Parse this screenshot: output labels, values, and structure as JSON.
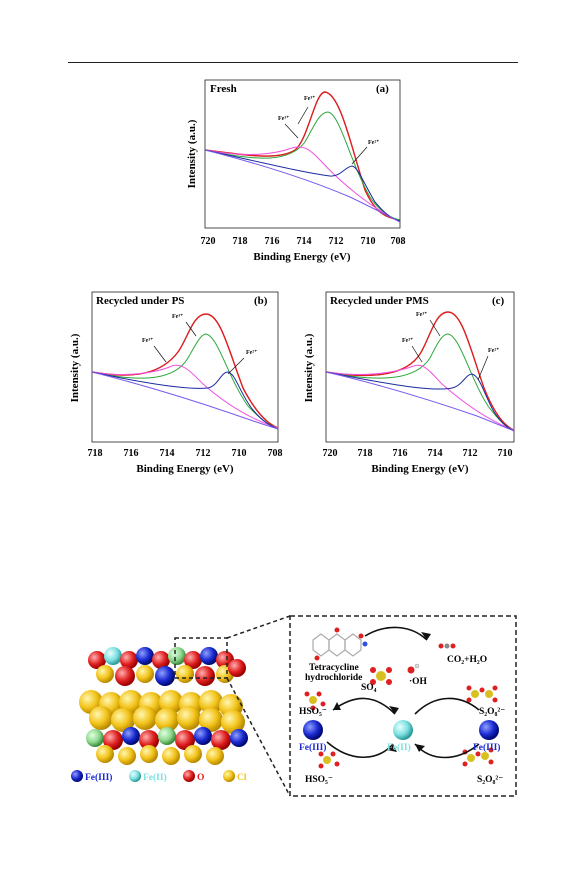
{
  "charts": [
    {
      "id": "a",
      "title": "Fresh",
      "panel_label": "(a)",
      "xlabel": "Binding Energy (eV)",
      "ylabel": "Intensity (a.u.)",
      "xticks": [
        "720",
        "718",
        "716",
        "714",
        "712",
        "710",
        "708"
      ],
      "annotations": [
        "Fe³⁺",
        "Fe³⁺",
        "Fe²⁺"
      ]
    },
    {
      "id": "b",
      "title": "Recycled under PS",
      "panel_label": "(b)",
      "xlabel": "Binding Energy (eV)",
      "ylabel": "Intensity (a.u.)",
      "xticks": [
        "718",
        "716",
        "714",
        "712",
        "710",
        "708"
      ],
      "annotations": [
        "Fe³⁺",
        "Fe³⁺",
        "Fe²⁺"
      ]
    },
    {
      "id": "c",
      "title": "Recycled under PMS",
      "panel_label": "(c)",
      "xlabel": "Binding Energy (eV)",
      "ylabel": "Intensity (a.u.)",
      "xticks": [
        "720",
        "718",
        "716",
        "714",
        "712",
        "710"
      ],
      "annotations": [
        "Fe³⁺",
        "Fe³⁺",
        "Fe²⁺"
      ]
    }
  ],
  "colors": {
    "raw": "#111111",
    "fit": "#e02020",
    "peak_main": "#2aa83a",
    "peak_high": "#f050e0",
    "peak_fe2": "#1a2aa0",
    "baseline": "#7a5af0"
  },
  "scheme": {
    "legend": [
      {
        "label": "Fe(III)",
        "color": "#1a2ad0"
      },
      {
        "label": "Fe(II)",
        "color": "#7fe0e0"
      },
      {
        "label": "O",
        "color": "#e02020"
      },
      {
        "label": "Cl",
        "color": "#f2c31a"
      }
    ],
    "labels": {
      "tc": "Tetracycline",
      "tc2": "hydrochloride",
      "co2": "CO₂+H₂O",
      "so4": "SO₄",
      "oh": "·OH",
      "hso5_top": "HSO₅⁻",
      "s2o8_top": "S₂O₈²⁻",
      "fe3_left": "Fe(III)",
      "fe2_mid": "Fe(II)",
      "fe3_right": "Fe(III)",
      "hso5_bottom": "HSO₅⁻",
      "s2o8_bottom": "S₂O₈²⁻"
    }
  }
}
